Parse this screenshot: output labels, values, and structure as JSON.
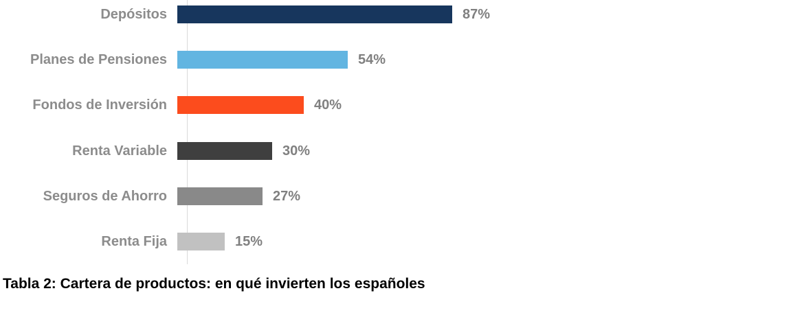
{
  "chart_data": {
    "type": "bar",
    "orientation": "horizontal",
    "title": "",
    "xlabel": "",
    "ylabel": "",
    "xlim": [
      0,
      100
    ],
    "grid": false,
    "legend": false,
    "categories": [
      "Depósitos",
      "Planes de Pensiones",
      "Fondos de Inversión",
      "Renta Variable",
      "Seguros de Ahorro",
      "Renta Fija"
    ],
    "values": [
      87,
      54,
      40,
      30,
      27,
      15
    ],
    "value_labels": [
      "87%",
      "54%",
      "40%",
      "30%",
      "27%",
      "15%"
    ],
    "bar_colors": [
      "#17365d",
      "#62b5e1",
      "#fc4c1d",
      "#3f3f3f",
      "#898989",
      "#c1c1c1"
    ],
    "category_label_color": "#8c8c8c",
    "value_label_color": "#808080",
    "axis_line_color": "#d9d9d9"
  },
  "caption": {
    "text": "Tabla 2: Cartera de productos: en qué invierten los españoles"
  }
}
